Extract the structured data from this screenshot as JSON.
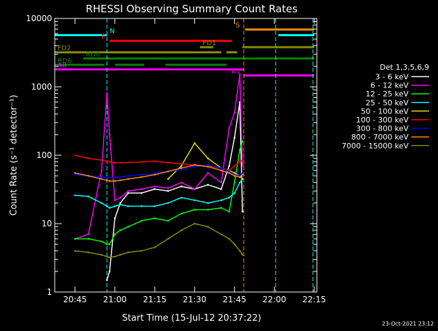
{
  "chart_data": {
    "type": "line",
    "title": "RHESSI Observing Summary Count Rates",
    "xlabel": "Start Time (15-Jul-12 20:37:22)",
    "ylabel": "Count Rate (s⁻¹ detector⁻¹)",
    "footer": "23-Oct-2021 23:12",
    "xlim": [
      "20:37:22",
      "22:16:00"
    ],
    "ylim": [
      1,
      10000
    ],
    "yscale": "log",
    "x_ticks": [
      "20:45",
      "21:00",
      "21:15",
      "21:30",
      "21:45",
      "22:00",
      "22:15"
    ],
    "y_ticks": [
      "1",
      "10",
      "100",
      "1000",
      "10000"
    ],
    "legend": {
      "title": "Det 1,3,5,6,9",
      "placement": "right",
      "entries": [
        {
          "label": "3 - 6 keV",
          "color": "#ffffff"
        },
        {
          "label": "6 - 12 keV",
          "color": "#ff00ff"
        },
        {
          "label": "12 - 25 keV",
          "color": "#00ff00"
        },
        {
          "label": "25 - 50 keV",
          "color": "#00ffff"
        },
        {
          "label": "50 - 100 keV",
          "color": "#e0e000"
        },
        {
          "label": "100 - 300 keV",
          "color": "#ff0000"
        },
        {
          "label": "300 - 800 keV",
          "color": "#0000ff"
        },
        {
          "label": "800 - 7000 keV",
          "color": "#ff8c00"
        },
        {
          "label": "7000 - 15000 keV",
          "color": "#8b8b00"
        }
      ]
    },
    "flags": [
      {
        "label": "N",
        "color": "#00ffff",
        "level": 5700,
        "segments": [
          [
            "20:37:22",
            "20:57:00"
          ],
          [
            "22:01:30",
            "22:15:00"
          ]
        ]
      },
      {
        "label": "S",
        "color": "#ff8c00",
        "level": 6900,
        "segments": [
          [
            "21:49:00",
            "22:15:00"
          ]
        ]
      },
      {
        "label": "F",
        "color": "#ff0000",
        "level": 4700,
        "segments": [
          [
            "20:58:00",
            "21:44:00"
          ]
        ]
      },
      {
        "label": "FD1",
        "color": "#8b8b00",
        "level": 3800,
        "segments": [
          [
            "21:32:00",
            "21:37:00"
          ],
          [
            "21:48:00",
            "22:15:00"
          ]
        ]
      },
      {
        "label": "FD2",
        "color": "#8b8b00",
        "level": 3200,
        "segments": [
          [
            "20:37:22",
            "21:40:00"
          ],
          [
            "21:42:00",
            "21:46:00"
          ]
        ]
      },
      {
        "label": "RD0",
        "color": "#008000",
        "level": 2600,
        "segments": [
          [
            "20:48:00",
            "22:15:00"
          ]
        ]
      },
      {
        "label": "RD6",
        "color": "#008000",
        "level": 2100,
        "segments": [
          [
            "20:37:22",
            "20:56:00"
          ],
          [
            "21:00:00",
            "21:11:00"
          ],
          [
            "21:19:00",
            "21:42:00"
          ]
        ]
      },
      {
        "label": "A0",
        "color": "#ff00ff",
        "level": 1800,
        "segments": [
          [
            "20:37:22",
            "21:48:30"
          ]
        ]
      },
      {
        "label": "A1",
        "color": "#ff00ff",
        "level": 1470,
        "segments": [
          [
            "21:48:30",
            "22:15:00"
          ]
        ]
      }
    ],
    "markers": [
      {
        "color": "#00ffff",
        "x": "20:57:00"
      },
      {
        "color": "#ff8c00",
        "x": "21:48:30"
      },
      {
        "color": "#00ffff",
        "x": "22:00:30"
      },
      {
        "color": "#00ffff",
        "x": "22:14:30"
      }
    ],
    "x": [
      "20:45",
      "20:50",
      "20:55",
      "20:57",
      "20:58",
      "21:00",
      "21:02",
      "21:05",
      "21:10",
      "21:15",
      "21:20",
      "21:25",
      "21:30",
      "21:35",
      "21:40",
      "21:43",
      "21:45",
      "21:47",
      "21:48"
    ],
    "series": [
      {
        "name": "3 - 6 keV",
        "color": "#ffffff",
        "values": [
          null,
          null,
          null,
          1.5,
          2,
          12,
          20,
          28,
          28,
          32,
          30,
          35,
          32,
          37,
          32,
          70,
          180,
          600,
          15
        ]
      },
      {
        "name": "6 - 12 keV",
        "color": "#ff00ff",
        "values": [
          6,
          7,
          60,
          800,
          200,
          22,
          24,
          30,
          32,
          35,
          33,
          40,
          32,
          55,
          40,
          250,
          420,
          1500,
          70
        ]
      },
      {
        "name": "12 - 25 keV",
        "color": "#00ff00",
        "values": [
          6,
          6,
          5.5,
          5,
          5,
          7,
          8,
          9,
          11,
          12,
          11,
          14,
          16,
          16,
          17,
          15,
          40,
          120,
          160
        ]
      },
      {
        "name": "25 - 50 keV",
        "color": "#00ffff",
        "values": [
          26,
          25,
          20,
          18,
          17,
          18,
          19,
          18,
          18,
          18,
          20,
          24,
          22,
          20,
          22,
          24,
          28,
          40,
          45
        ]
      },
      {
        "name": "50 - 100 keV",
        "color": "#e0e000",
        "values": [
          null,
          null,
          null,
          null,
          null,
          null,
          null,
          null,
          null,
          null,
          45,
          70,
          150,
          90,
          65,
          60,
          55,
          50,
          45
        ]
      },
      {
        "name": "100 - 300 keV",
        "color": "#ff0000",
        "values": [
          100,
          90,
          85,
          82,
          80,
          78,
          78,
          78,
          80,
          82,
          78,
          75,
          72,
          70,
          65,
          60,
          70,
          80,
          85
        ]
      },
      {
        "name": "300 - 800 keV",
        "color": "#0000ff",
        "values": [
          52,
          50,
          48,
          47,
          47,
          47,
          48,
          50,
          52,
          54,
          58,
          62,
          68,
          72,
          65,
          58,
          52,
          50,
          55
        ]
      },
      {
        "name": "800 - 7000 keV",
        "color": "#ff8c00",
        "values": [
          55,
          50,
          45,
          43,
          42,
          42,
          43,
          45,
          48,
          52,
          58,
          65,
          72,
          68,
          60,
          55,
          50,
          48,
          52
        ]
      },
      {
        "name": "7000 - 15000 keV",
        "color": "#8b8b00",
        "values": [
          4,
          3.8,
          3.5,
          3.3,
          3.2,
          3.3,
          3.5,
          3.8,
          4,
          4.5,
          6,
          8,
          10,
          9,
          7,
          6,
          5,
          4,
          3.5
        ]
      }
    ]
  }
}
